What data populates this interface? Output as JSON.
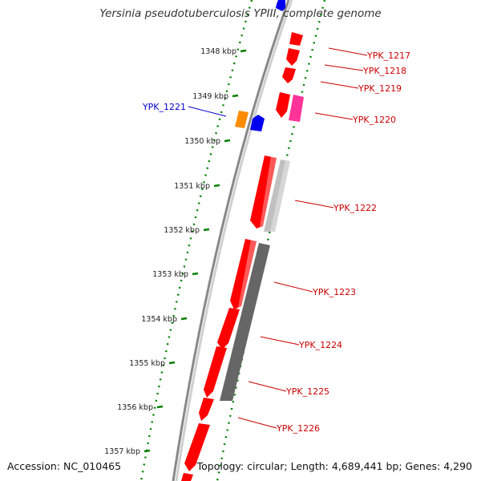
{
  "title": "Yersinia pseudotuberculosis YPIII, complete genome",
  "accession": "Accession: NC_010465",
  "topology": "Topology: circular; Length: 4,689,441 bp; Genes: 4,290",
  "colors": {
    "forward_gene": "#ff0000",
    "reverse_gene": "#ff0000",
    "highlight_gene": "#0000ee",
    "orange_feature": "#ff8c00",
    "pink_feature": "#ff3399",
    "light_gray_feature": "#c0c0c0",
    "dark_gray_feature": "#666666",
    "backbone": "#888888",
    "tick_green": "#008000",
    "label_red": "#cc0000",
    "label_blue": "#0000cc"
  },
  "scale": {
    "ticks": [
      {
        "label": "1348 kbp",
        "kbp": 1348
      },
      {
        "label": "1349 kbp",
        "kbp": 1349
      },
      {
        "label": "1350 kbp",
        "kbp": 1350
      },
      {
        "label": "1351 kbp",
        "kbp": 1351
      },
      {
        "label": "1352 kbp",
        "kbp": 1352
      },
      {
        "label": "1353 kbp",
        "kbp": 1353
      },
      {
        "label": "1354 kbp",
        "kbp": 1354
      },
      {
        "label": "1355 kbp",
        "kbp": 1355
      },
      {
        "label": "1356 kbp",
        "kbp": 1356
      },
      {
        "label": "1357 kbp",
        "kbp": 1357
      }
    ]
  },
  "gene_labels": [
    {
      "name": "YPK_1217",
      "color": "red"
    },
    {
      "name": "YPK_1218",
      "color": "red"
    },
    {
      "name": "YPK_1219",
      "color": "red"
    },
    {
      "name": "YPK_1220",
      "color": "red"
    },
    {
      "name": "YPK_1221",
      "color": "blue"
    },
    {
      "name": "YPK_1222",
      "color": "red"
    },
    {
      "name": "YPK_1223",
      "color": "red"
    },
    {
      "name": "YPK_1224",
      "color": "red"
    },
    {
      "name": "YPK_1225",
      "color": "red"
    },
    {
      "name": "YPK_1226",
      "color": "red"
    }
  ]
}
